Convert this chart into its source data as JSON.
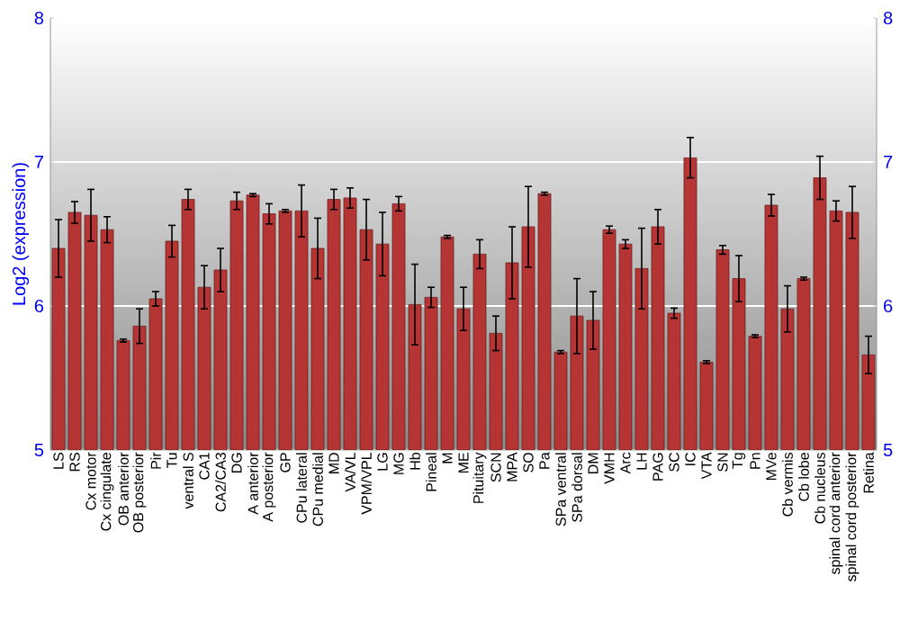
{
  "chart_data": {
    "type": "bar",
    "ylabel": "Log2 (expression)",
    "categories": [
      "LS",
      "RS",
      "Cx motor",
      "Cx cingulate",
      "OB anterior",
      "OB posterior",
      "Pir",
      "Tu",
      "ventral S",
      "CA1",
      "CA2/CA3",
      "DG",
      "A anterior",
      "A posterior",
      "GP",
      "CPu lateral",
      "CPu medial",
      "MD",
      "VA/VL",
      "VPM/VPL",
      "LG",
      "MG",
      "Hb",
      "Pineal",
      "M",
      "ME",
      "Pituitary",
      "SCN",
      "MPA",
      "SO",
      "Pa",
      "SPa ventral",
      "SPa dorsal",
      "DM",
      "VMH",
      "Arc",
      "LH",
      "PAG",
      "SC",
      "IC",
      "VTA",
      "SN",
      "Tg",
      "Pn",
      "MVe",
      "Cb vermis",
      "Cb lobe",
      "Cb nucleus",
      "spinal cord anterior",
      "spinal cord posterior",
      "Retina"
    ],
    "values": [
      6.4,
      6.65,
      6.63,
      6.53,
      5.76,
      5.86,
      6.05,
      6.45,
      6.74,
      6.13,
      6.25,
      6.73,
      6.77,
      6.64,
      6.66,
      6.66,
      6.4,
      6.74,
      6.75,
      6.53,
      6.43,
      6.71,
      6.01,
      6.06,
      6.48,
      5.98,
      6.36,
      5.81,
      6.3,
      6.55,
      6.78,
      5.68,
      5.93,
      5.9,
      6.53,
      6.43,
      6.26,
      6.55,
      5.95,
      7.03,
      5.61,
      6.39,
      6.19,
      5.79,
      6.7,
      5.98,
      6.19,
      6.89,
      6.66,
      6.65,
      5.66
    ],
    "errors": [
      0.2,
      0.075,
      0.18,
      0.09,
      0.01,
      0.12,
      0.05,
      0.11,
      0.07,
      0.15,
      0.15,
      0.06,
      0.01,
      0.07,
      0.01,
      0.18,
      0.21,
      0.07,
      0.07,
      0.21,
      0.22,
      0.05,
      0.28,
      0.07,
      0.01,
      0.15,
      0.1,
      0.12,
      0.25,
      0.28,
      0.01,
      0.01,
      0.26,
      0.2,
      0.025,
      0.03,
      0.28,
      0.12,
      0.035,
      0.14,
      0.01,
      0.03,
      0.16,
      0.01,
      0.075,
      0.16,
      0.01,
      0.15,
      0.07,
      0.18,
      0.13
    ],
    "color": "#b53434",
    "ylim": [
      5,
      8
    ],
    "yticks": [
      5,
      6,
      7,
      8
    ],
    "y2lim": [
      5,
      8
    ],
    "y2ticks": [
      5,
      6,
      7,
      8
    ],
    "grid": "y"
  }
}
